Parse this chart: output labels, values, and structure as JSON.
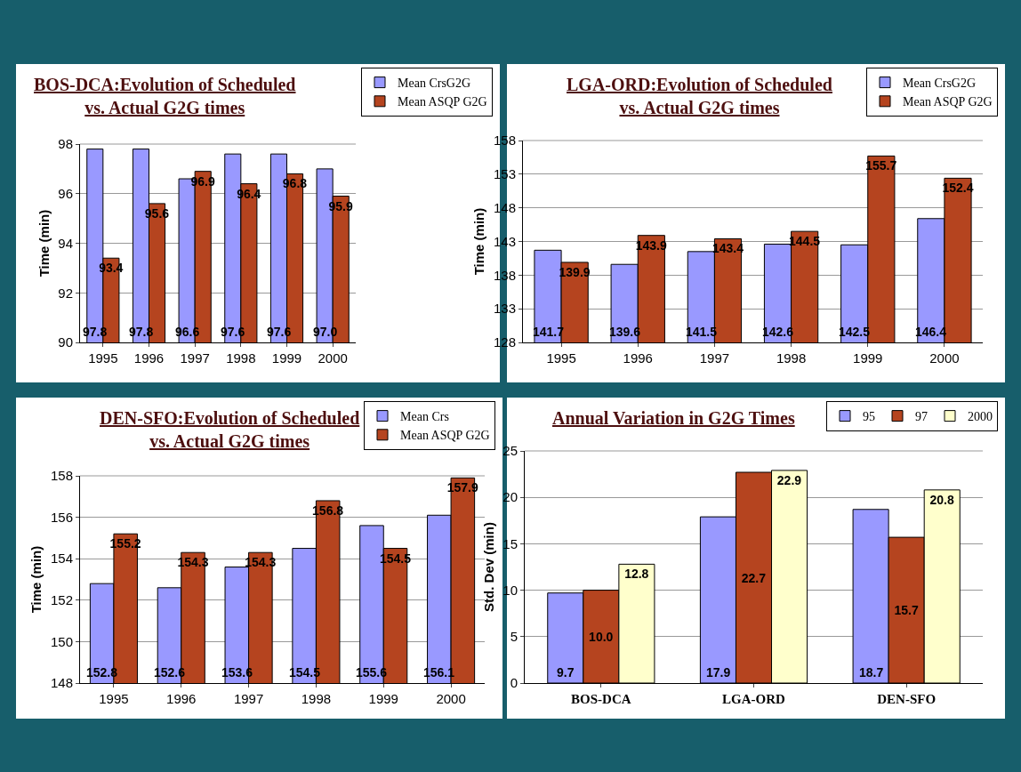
{
  "chart_data": [
    {
      "type": "bar",
      "title": "BOS-DCA:Evolution of Scheduled vs. Actual G2G times",
      "ylabel": "Time (min)",
      "categories": [
        "1995",
        "1996",
        "1997",
        "1998",
        "1999",
        "2000"
      ],
      "ylim": [
        90,
        98
      ],
      "yticks": [
        90,
        92,
        94,
        96,
        98
      ],
      "grid": "y",
      "legend": "top right",
      "series": [
        {
          "name": "Mean CrsG2G",
          "color": "#9999ff",
          "values": [
            97.8,
            97.8,
            96.6,
            97.6,
            97.6,
            97.0
          ],
          "value_labels": [
            "97.8",
            "97.8",
            "96.6",
            "97.6",
            "97.6",
            "97.0"
          ]
        },
        {
          "name": "Mean ASQP G2G",
          "color": "#b5441f",
          "values": [
            93.4,
            95.6,
            96.9,
            96.4,
            96.8,
            95.9
          ],
          "value_labels": [
            "93.4",
            "95.6",
            "96.9",
            "96.4",
            "96.8",
            "95.9"
          ]
        }
      ]
    },
    {
      "type": "bar",
      "title": "LGA-ORD:Evolution of Scheduled vs. Actual G2G times",
      "ylabel": "Time (min)",
      "categories": [
        "1995",
        "1996",
        "1997",
        "1998",
        "1999",
        "2000"
      ],
      "ylim": [
        128,
        158
      ],
      "yticks": [
        128,
        133,
        138,
        143,
        148,
        153,
        158
      ],
      "grid": "y",
      "legend": "top right",
      "series": [
        {
          "name": "Mean CrsG2G",
          "color": "#9999ff",
          "values": [
            141.7,
            139.6,
            141.5,
            142.6,
            142.5,
            146.4
          ],
          "value_labels": [
            "141.7",
            "139.6",
            "141.5",
            "142.6",
            "142.5",
            "146.4"
          ]
        },
        {
          "name": "Mean ASQP G2G",
          "color": "#b5441f",
          "values": [
            139.9,
            143.9,
            143.4,
            144.5,
            155.7,
            152.4
          ],
          "value_labels": [
            "139.9",
            "143.9",
            "143.4",
            "144.5",
            "155.7",
            "152.4"
          ]
        }
      ]
    },
    {
      "type": "bar",
      "title": "DEN-SFO:Evolution of Scheduled vs. Actual G2G times",
      "ylabel": "Time (min)",
      "categories": [
        "1995",
        "1996",
        "1997",
        "1998",
        "1999",
        "2000"
      ],
      "ylim": [
        148,
        158
      ],
      "yticks": [
        148,
        150,
        152,
        154,
        156,
        158
      ],
      "grid": "y",
      "legend": "top right",
      "series": [
        {
          "name": "Mean Crs",
          "color": "#9999ff",
          "values": [
            152.8,
            152.6,
            153.6,
            154.5,
            155.6,
            156.1
          ],
          "value_labels": [
            "152.8",
            "152.6",
            "153.6",
            "154.5",
            "155.6",
            "156.1"
          ]
        },
        {
          "name": "Mean ASQP G2G",
          "color": "#b5441f",
          "values": [
            155.2,
            154.3,
            154.3,
            156.8,
            154.5,
            157.9
          ],
          "value_labels": [
            "155.2",
            "154.3",
            "154.3",
            "156.8",
            "154.5",
            "157.9"
          ]
        }
      ]
    },
    {
      "type": "bar",
      "title": "Annual Variation in G2G Times",
      "ylabel": "Std. Dev (min)",
      "categories": [
        "BOS-DCA",
        "LGA-ORD",
        "DEN-SFO"
      ],
      "ylim": [
        0,
        25
      ],
      "yticks": [
        0,
        5,
        10,
        15,
        20,
        25
      ],
      "grid": "y",
      "legend": "top right",
      "series": [
        {
          "name": "95",
          "color": "#9999ff",
          "values": [
            9.7,
            17.9,
            18.7
          ],
          "value_labels": [
            "9.7",
            "17.9",
            "18.7"
          ]
        },
        {
          "name": "97",
          "color": "#b5441f",
          "values": [
            10.0,
            22.7,
            15.7
          ],
          "value_labels": [
            "10.0",
            "22.7",
            "15.7"
          ]
        },
        {
          "name": "2000",
          "color": "#ffffcc",
          "values": [
            12.8,
            22.9,
            20.8
          ],
          "value_labels": [
            "12.8",
            "22.9",
            "20.8"
          ]
        }
      ]
    }
  ]
}
